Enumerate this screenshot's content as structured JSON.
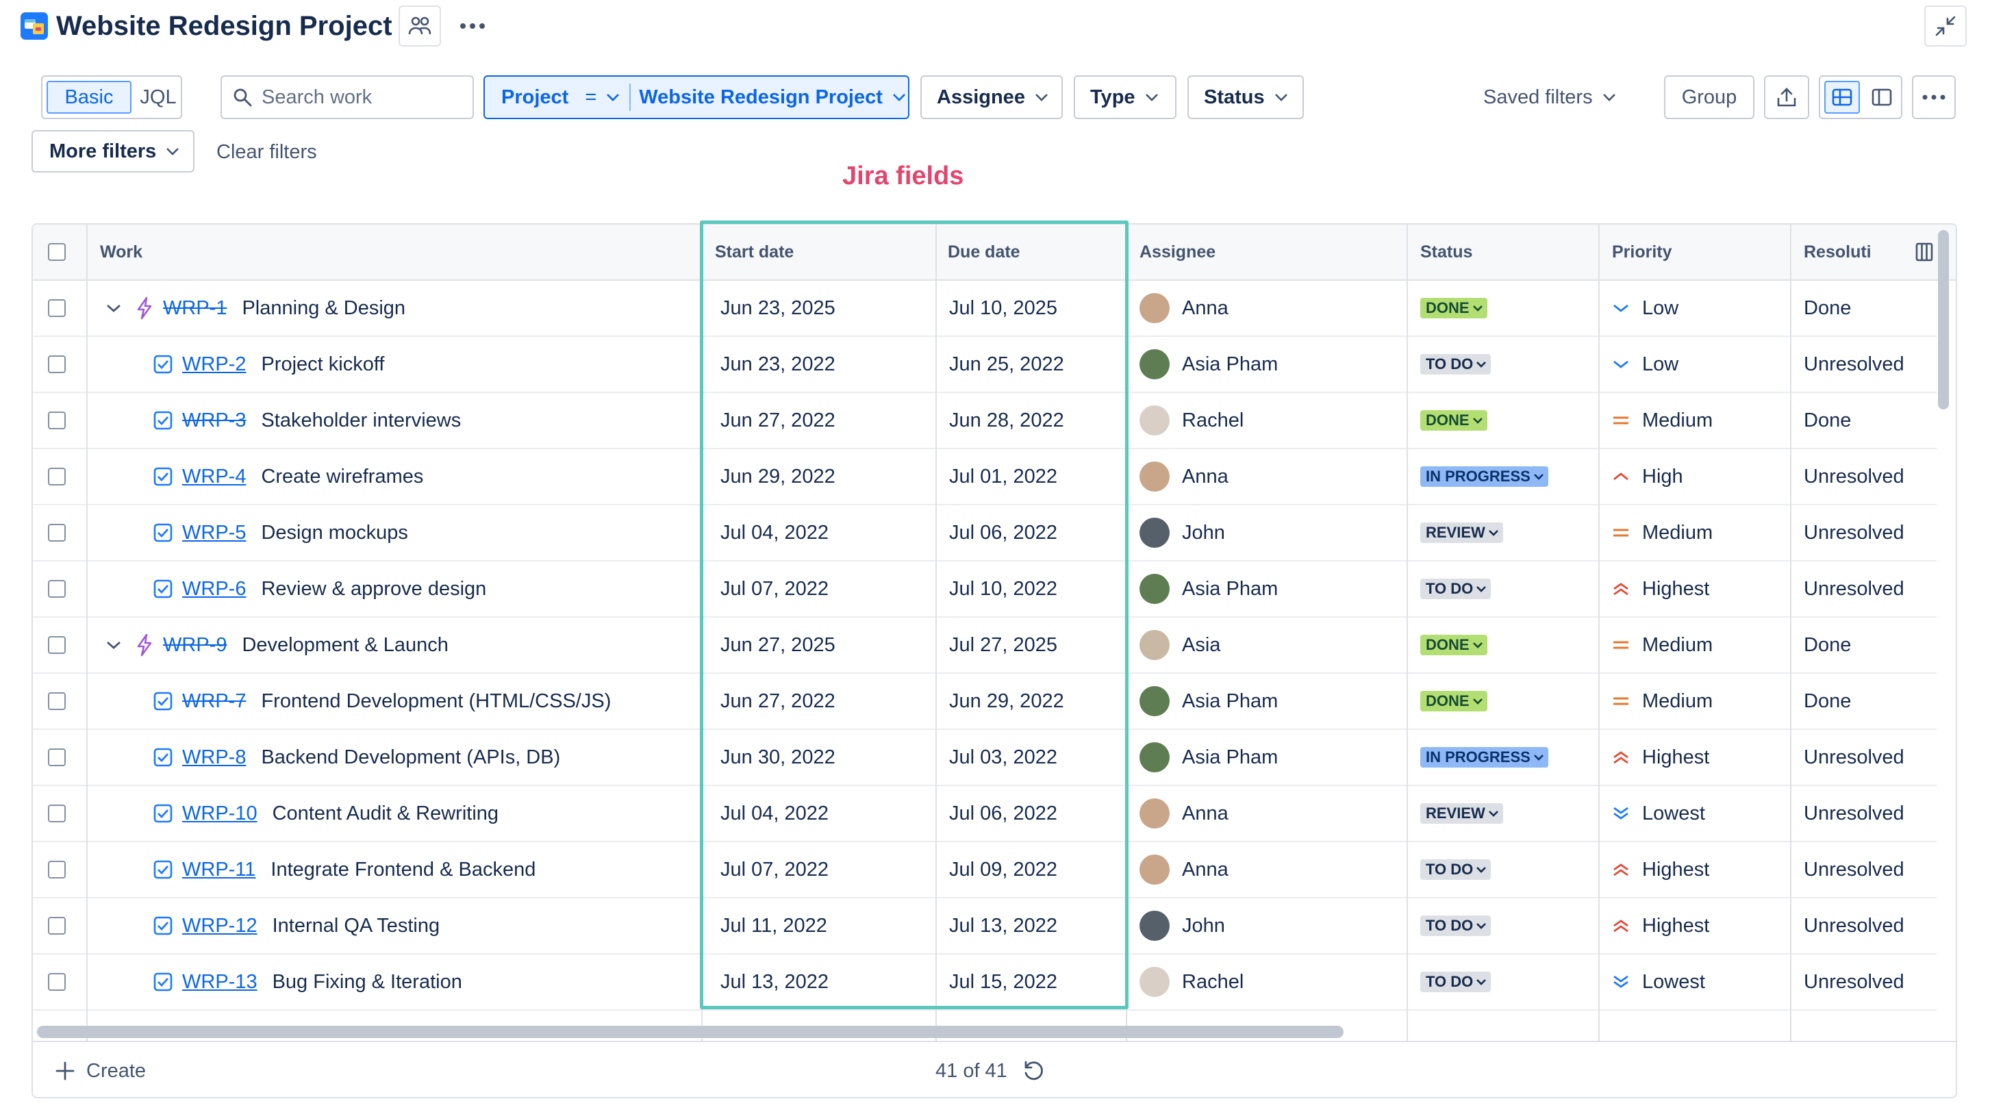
{
  "header": {
    "title": "Website Redesign Project"
  },
  "filters": {
    "basic_label": "Basic",
    "jql_label": "JQL",
    "search_placeholder": "Search work",
    "project_label": "Project",
    "project_operator": "=",
    "project_value": "Website Redesign Project",
    "assignee_label": "Assignee",
    "type_label": "Type",
    "status_label": "Status",
    "saved_filters_label": "Saved filters",
    "group_label": "Group",
    "more_filters_label": "More filters",
    "clear_filters_label": "Clear filters"
  },
  "annotation": {
    "text": "Jira fields"
  },
  "table": {
    "columns": {
      "work": "Work",
      "start": "Start date",
      "due": "Due date",
      "assignee": "Assignee",
      "status": "Status",
      "priority": "Priority",
      "resolution": "Resoluti"
    },
    "rows": [
      {
        "key": "WRP-1",
        "summary": "Planning & Design",
        "parent": true,
        "key_done": true,
        "start": "Jun 23, 2025",
        "due": "Jul 10, 2025",
        "assignee": "Anna",
        "status": "DONE",
        "priority": "Low",
        "resolution": "Done"
      },
      {
        "key": "WRP-2",
        "summary": "Project kickoff",
        "parent": false,
        "key_done": false,
        "start": "Jun 23, 2022",
        "due": "Jun 25, 2022",
        "assignee": "Asia Pham",
        "status": "TO DO",
        "priority": "Low",
        "resolution": "Unresolved"
      },
      {
        "key": "WRP-3",
        "summary": "Stakeholder interviews",
        "parent": false,
        "key_done": true,
        "start": "Jun 27, 2022",
        "due": "Jun 28, 2022",
        "assignee": "Rachel",
        "status": "DONE",
        "priority": "Medium",
        "resolution": "Done"
      },
      {
        "key": "WRP-4",
        "summary": "Create wireframes",
        "parent": false,
        "key_done": false,
        "start": "Jun 29, 2022",
        "due": "Jul 01, 2022",
        "assignee": "Anna",
        "status": "IN PROGRESS",
        "priority": "High",
        "resolution": "Unresolved"
      },
      {
        "key": "WRP-5",
        "summary": "Design mockups",
        "parent": false,
        "key_done": false,
        "start": "Jul 04, 2022",
        "due": "Jul 06, 2022",
        "assignee": "John",
        "status": "REVIEW",
        "priority": "Medium",
        "resolution": "Unresolved"
      },
      {
        "key": "WRP-6",
        "summary": "Review & approve design",
        "parent": false,
        "key_done": false,
        "start": "Jul 07, 2022",
        "due": "Jul 10, 2022",
        "assignee": "Asia Pham",
        "status": "TO DO",
        "priority": "Highest",
        "resolution": "Unresolved"
      },
      {
        "key": "WRP-9",
        "summary": "Development & Launch",
        "parent": true,
        "key_done": true,
        "start": "Jun 27, 2025",
        "due": "Jul 27, 2025",
        "assignee": "Asia",
        "status": "DONE",
        "priority": "Medium",
        "resolution": "Done"
      },
      {
        "key": "WRP-7",
        "summary": "Frontend Development (HTML/CSS/JS)",
        "parent": false,
        "key_done": true,
        "start": "Jun 27, 2022",
        "due": "Jun 29, 2022",
        "assignee": "Asia Pham",
        "status": "DONE",
        "priority": "Medium",
        "resolution": "Done"
      },
      {
        "key": "WRP-8",
        "summary": "Backend Development (APIs, DB)",
        "parent": false,
        "key_done": false,
        "start": "Jun 30, 2022",
        "due": "Jul 03, 2022",
        "assignee": "Asia Pham",
        "status": "IN PROGRESS",
        "priority": "Highest",
        "resolution": "Unresolved"
      },
      {
        "key": "WRP-10",
        "summary": "Content Audit & Rewriting",
        "parent": false,
        "key_done": false,
        "start": "Jul 04, 2022",
        "due": "Jul 06, 2022",
        "assignee": "Anna",
        "status": "REVIEW",
        "priority": "Lowest",
        "resolution": "Unresolved"
      },
      {
        "key": "WRP-11",
        "summary": "Integrate Frontend & Backend",
        "parent": false,
        "key_done": false,
        "start": "Jul 07, 2022",
        "due": "Jul 09, 2022",
        "assignee": "Anna",
        "status": "TO DO",
        "priority": "Highest",
        "resolution": "Unresolved"
      },
      {
        "key": "WRP-12",
        "summary": "Internal QA Testing",
        "parent": false,
        "key_done": false,
        "start": "Jul 11, 2022",
        "due": "Jul 13, 2022",
        "assignee": "John",
        "status": "TO DO",
        "priority": "Highest",
        "resolution": "Unresolved"
      },
      {
        "key": "WRP-13",
        "summary": "Bug Fixing & Iteration",
        "parent": false,
        "key_done": false,
        "start": "Jul 13, 2022",
        "due": "Jul 15, 2022",
        "assignee": "Rachel",
        "status": "TO DO",
        "priority": "Lowest",
        "resolution": "Unresolved"
      }
    ]
  },
  "footer": {
    "create_label": "Create",
    "count": "41 of 41"
  },
  "colors": {
    "accent": "#0c66e4",
    "annotation": "#e2466f",
    "highlight": "#5ac8bd",
    "done_bg": "#b3df72",
    "todo_bg": "#dcdfe4",
    "inprogress_bg": "#8fb8f6",
    "review_bg": "#dcdfe4",
    "epic": "#9f5bd6"
  },
  "icons": {
    "epic": "lightning-icon",
    "task": "checkbox-task-icon",
    "people": "people-icon",
    "export": "export-icon"
  }
}
